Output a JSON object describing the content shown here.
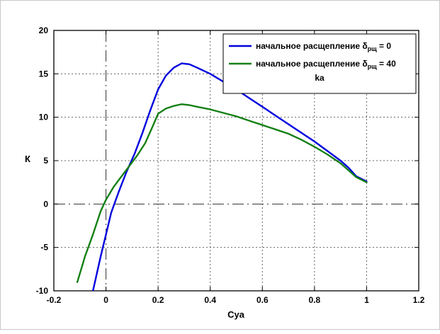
{
  "figure": {
    "background": "#ffffff",
    "plot_border_color": "#000000",
    "grid_color": "#666666",
    "zero_line_color": "#333333"
  },
  "chart_data": {
    "type": "line",
    "title": "",
    "xlabel": "Суа",
    "ylabel": "К",
    "xlim": [
      -0.2,
      1.2
    ],
    "ylim": [
      -10,
      20
    ],
    "grid": "dashed, on at every tick",
    "zero_lines": "dash-dot vertical at x=0 and horizontal at y=0",
    "legend_position": "top-right inside plot, boxed",
    "x_ticks": [
      -0.2,
      0,
      0.2,
      0.4,
      0.6,
      0.8,
      1,
      1.2
    ],
    "x_tick_labels": [
      "-0.2",
      "0",
      "0.2",
      "0.4",
      "0.6",
      "0.8",
      "1",
      "1.2"
    ],
    "y_ticks": [
      -10,
      -5,
      0,
      5,
      10,
      15,
      20
    ],
    "y_tick_labels": [
      "-10",
      "-5",
      "0",
      "5",
      "10",
      "15",
      "20"
    ],
    "series": [
      {
        "name": "начальное расщепление δрщ = 0",
        "color": "#0000dd",
        "width": 2.4,
        "x": [
          -0.05,
          -0.02,
          0,
          0.02,
          0.05,
          0.08,
          0.11,
          0.14,
          0.17,
          0.2,
          0.23,
          0.26,
          0.29,
          0.32,
          0.35,
          0.4,
          0.45,
          0.5,
          0.55,
          0.6,
          0.65,
          0.7,
          0.75,
          0.8,
          0.85,
          0.9,
          0.93,
          0.96,
          1.0
        ],
        "y": [
          -10,
          -6,
          -3.5,
          -1,
          1.5,
          3.8,
          5.8,
          8.2,
          10.8,
          13.2,
          14.8,
          15.7,
          16.2,
          16.1,
          15.7,
          15.0,
          14.1,
          13.2,
          12.2,
          11.2,
          10.2,
          9.2,
          8.2,
          7.2,
          6.1,
          5.0,
          4.2,
          3.2,
          2.6
        ]
      },
      {
        "name": "начальное расщепление δрщ = 40 ka",
        "color": "#158015",
        "width": 2.4,
        "x": [
          -0.11,
          -0.08,
          -0.05,
          -0.02,
          0,
          0.03,
          0.06,
          0.09,
          0.12,
          0.15,
          0.18,
          0.2,
          0.23,
          0.26,
          0.29,
          0.32,
          0.35,
          0.4,
          0.45,
          0.5,
          0.55,
          0.6,
          0.65,
          0.7,
          0.75,
          0.8,
          0.85,
          0.9,
          0.93,
          0.96,
          1.0
        ],
        "y": [
          -9,
          -6,
          -3.5,
          -0.8,
          0.5,
          2.0,
          3.2,
          4.4,
          5.6,
          7.0,
          9.0,
          10.4,
          11.0,
          11.3,
          11.5,
          11.4,
          11.2,
          10.9,
          10.5,
          10.1,
          9.6,
          9.1,
          8.6,
          8.1,
          7.4,
          6.6,
          5.7,
          4.7,
          3.9,
          3.1,
          2.5
        ]
      }
    ],
    "legend": {
      "entries": [
        {
          "color": "#0000dd",
          "pre": "начальное расщепление δ",
          "sub": "рщ",
          "post": " = 0",
          "wrap": ""
        },
        {
          "color": "#158015",
          "pre": "начальное расщепление δ",
          "sub": "рщ",
          "post": " = 40",
          "wrap": "ka"
        }
      ]
    }
  }
}
